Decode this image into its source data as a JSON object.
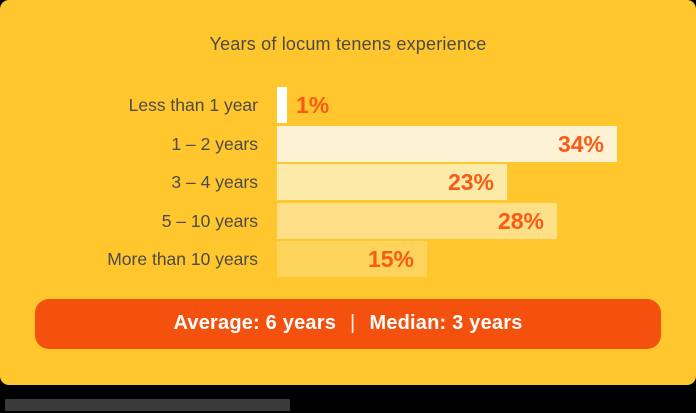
{
  "page": {
    "background_color": "#000000",
    "card_color": "#FFC62E"
  },
  "chart_data": {
    "type": "bar",
    "orientation": "horizontal",
    "title": "Years of locum tenens experience",
    "categories": [
      "Less than 1 year",
      "1 – 2 years",
      "3 – 4 years",
      "5 – 10 years",
      "More than 10 years"
    ],
    "values": [
      1,
      34,
      23,
      28,
      15
    ],
    "value_labels": [
      "1%",
      "34%",
      "23%",
      "28%",
      "15%"
    ],
    "unit": "%",
    "xlim": [
      0,
      35
    ],
    "grid": false,
    "legend": "none",
    "axis_visible": false,
    "bar_colors": [
      "#FFFFFF",
      "#FDF3D4",
      "#FCEAA9",
      "#FCDF86",
      "#FCD35B"
    ],
    "value_label_color": "#F85B16",
    "category_label_color": "#4D4B46"
  },
  "footer": {
    "average_label": "Average: 6 years",
    "separator": "|",
    "median_label": "Median: 3 years",
    "background_color": "#F4500E",
    "text_color": "#FFFFFF"
  }
}
